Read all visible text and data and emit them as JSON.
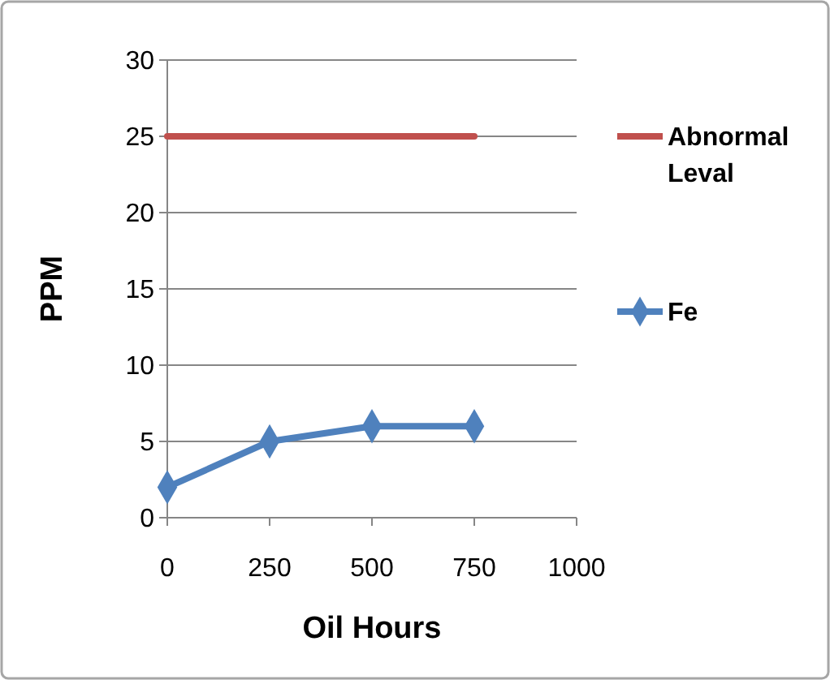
{
  "chart_data": {
    "type": "line",
    "xlabel": "Oil Hours",
    "ylabel": "PPM",
    "xlim": [
      0,
      1000
    ],
    "xticks": [
      0,
      250,
      500,
      750,
      1000
    ],
    "ylim": [
      0,
      30
    ],
    "yticks": [
      0,
      5,
      10,
      15,
      20,
      25,
      30
    ],
    "grid": "y",
    "legend": "right",
    "series": [
      {
        "name": "Abnormal Leval",
        "color": "#c0504d",
        "x": [
          0,
          750
        ],
        "values": [
          25,
          25
        ],
        "marker": "none"
      },
      {
        "name": "Fe",
        "color": "#4f81bd",
        "x": [
          0,
          250,
          500,
          750
        ],
        "values": [
          2,
          5,
          6,
          6
        ],
        "marker": "diamond"
      }
    ]
  }
}
